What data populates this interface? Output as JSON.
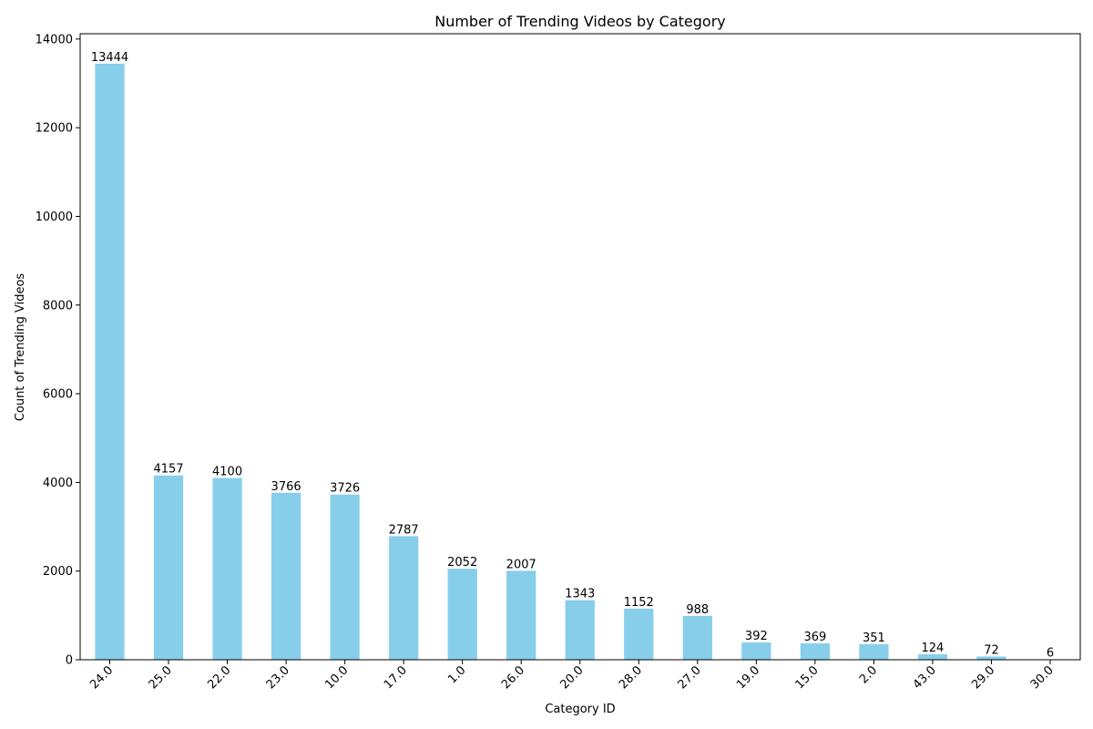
{
  "chart_data": {
    "type": "bar",
    "title": "Number of Trending Videos by Category",
    "xlabel": "Category ID",
    "ylabel": "Count of Trending Videos",
    "categories": [
      "24.0",
      "25.0",
      "22.0",
      "23.0",
      "10.0",
      "17.0",
      "1.0",
      "26.0",
      "20.0",
      "28.0",
      "27.0",
      "19.0",
      "15.0",
      "2.0",
      "43.0",
      "29.0",
      "30.0"
    ],
    "values": [
      13444,
      4157,
      4100,
      3766,
      3726,
      2787,
      2052,
      2007,
      1343,
      1152,
      988,
      392,
      369,
      351,
      124,
      72,
      6
    ],
    "ylim": [
      0,
      14120
    ],
    "yticks": [
      0,
      2000,
      4000,
      6000,
      8000,
      10000,
      12000,
      14000
    ],
    "bar_color": "#87CEEB",
    "grid": false,
    "legend": false
  }
}
